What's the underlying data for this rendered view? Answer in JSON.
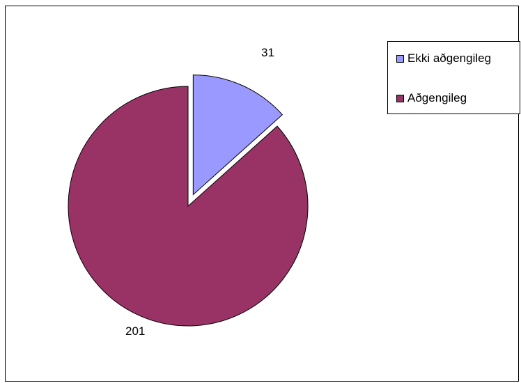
{
  "chart_data": {
    "type": "pie",
    "title": "",
    "legend_position": "top-right",
    "slices": [
      {
        "label": "Ekki aðgengileg",
        "value": 31,
        "color": "#9999FF",
        "exploded": true
      },
      {
        "label": "Aðgengileg",
        "value": 201,
        "color": "#993366",
        "exploded": false
      }
    ]
  }
}
